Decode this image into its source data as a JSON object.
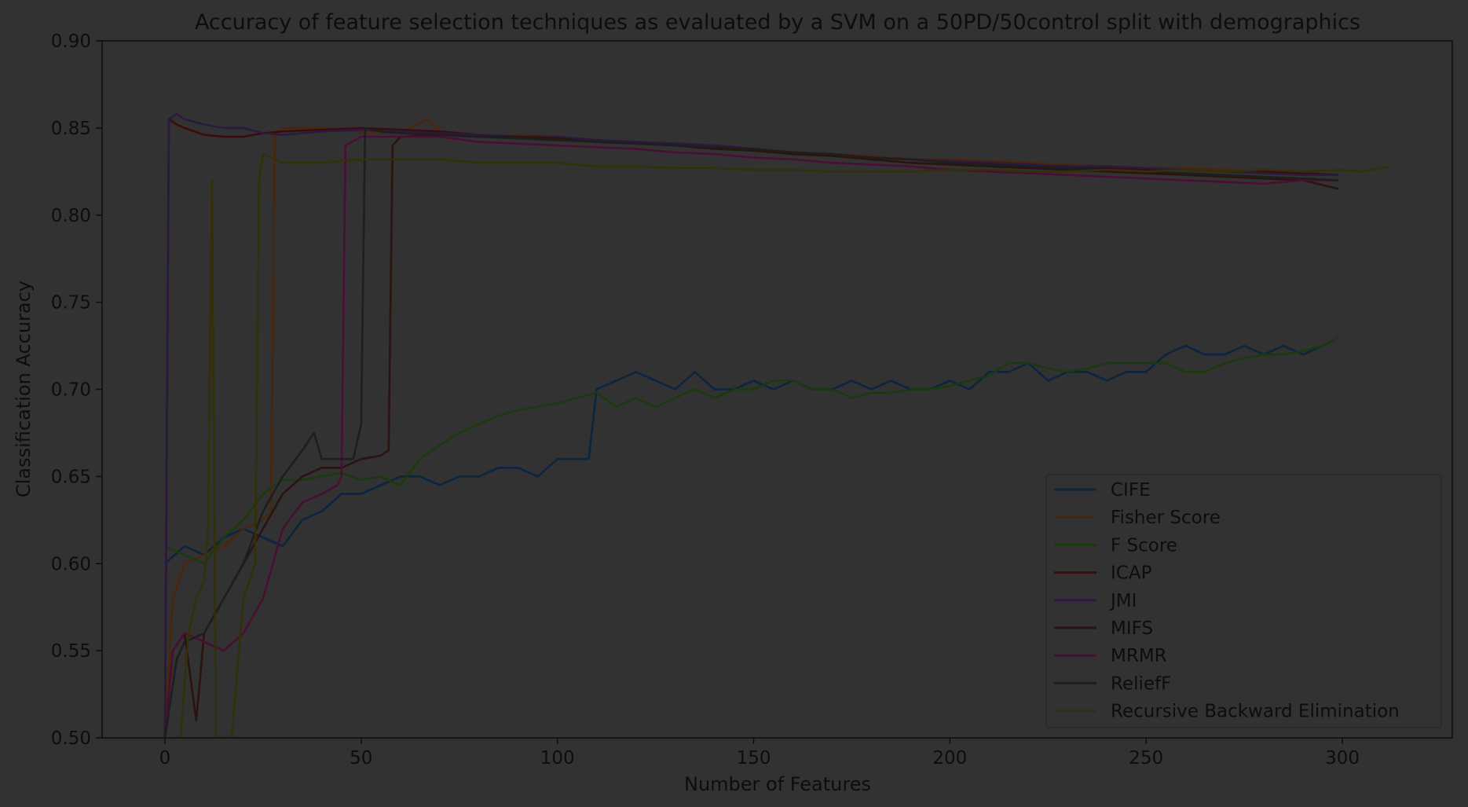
{
  "chart_data": {
    "type": "line",
    "title": "Accuracy of feature selection techniques as evaluated by a SVM on a 50PD/50control split with demographics",
    "xlabel": "Number of Features",
    "ylabel": "Classification Accuracy",
    "xlim": [
      -16,
      328
    ],
    "ylim": [
      0.5,
      0.9
    ],
    "xticks": [
      0,
      50,
      100,
      150,
      200,
      250,
      300
    ],
    "yticks": [
      0.5,
      0.55,
      0.6,
      0.65,
      0.7,
      0.75,
      0.8,
      0.85,
      0.9
    ],
    "grid": false,
    "legend_position": "lower-right",
    "series": [
      {
        "name": "CIFE",
        "color": "#0b2540",
        "x": [
          0,
          5,
          10,
          15,
          20,
          25,
          30,
          35,
          40,
          45,
          50,
          55,
          60,
          65,
          70,
          75,
          80,
          85,
          90,
          95,
          100,
          105,
          108,
          110,
          115,
          120,
          125,
          130,
          135,
          140,
          145,
          150,
          155,
          160,
          165,
          170,
          175,
          180,
          185,
          190,
          195,
          200,
          205,
          210,
          215,
          220,
          225,
          230,
          235,
          240,
          245,
          250,
          255,
          260,
          265,
          270,
          275,
          280,
          285,
          290,
          295,
          299
        ],
        "y": [
          0.6,
          0.61,
          0.605,
          0.615,
          0.62,
          0.615,
          0.61,
          0.625,
          0.63,
          0.64,
          0.64,
          0.645,
          0.65,
          0.65,
          0.645,
          0.65,
          0.65,
          0.655,
          0.655,
          0.65,
          0.66,
          0.66,
          0.66,
          0.7,
          0.705,
          0.71,
          0.705,
          0.7,
          0.71,
          0.7,
          0.7,
          0.705,
          0.7,
          0.705,
          0.7,
          0.7,
          0.705,
          0.7,
          0.705,
          0.7,
          0.7,
          0.705,
          0.7,
          0.71,
          0.71,
          0.715,
          0.705,
          0.71,
          0.71,
          0.705,
          0.71,
          0.71,
          0.72,
          0.725,
          0.72,
          0.72,
          0.725,
          0.72,
          0.725,
          0.72,
          0.725,
          0.73
        ]
      },
      {
        "name": "Fisher Score",
        "color": "#4a260c",
        "x": [
          0,
          2,
          5,
          10,
          15,
          20,
          25,
          27,
          28,
          30,
          40,
          50,
          60,
          67,
          70,
          80,
          90,
          100,
          110,
          120,
          130,
          140,
          150,
          160,
          170,
          180,
          190,
          200,
          210,
          220,
          230,
          240,
          250,
          260,
          270,
          280,
          290,
          299
        ],
        "y": [
          0.5,
          0.58,
          0.6,
          0.605,
          0.61,
          0.62,
          0.625,
          0.63,
          0.845,
          0.85,
          0.85,
          0.848,
          0.847,
          0.855,
          0.848,
          0.845,
          0.846,
          0.845,
          0.843,
          0.842,
          0.841,
          0.84,
          0.838,
          0.836,
          0.835,
          0.834,
          0.832,
          0.832,
          0.831,
          0.83,
          0.829,
          0.828,
          0.827,
          0.827,
          0.826,
          0.825,
          0.824,
          0.823
        ]
      },
      {
        "name": "F Score",
        "color": "#1a3a0e",
        "x": [
          0,
          5,
          10,
          15,
          20,
          25,
          30,
          35,
          40,
          45,
          50,
          55,
          60,
          65,
          70,
          75,
          80,
          85,
          90,
          95,
          100,
          105,
          110,
          115,
          120,
          125,
          130,
          135,
          140,
          145,
          150,
          155,
          160,
          165,
          170,
          175,
          180,
          185,
          190,
          195,
          200,
          205,
          210,
          215,
          220,
          225,
          230,
          235,
          240,
          245,
          250,
          255,
          260,
          265,
          270,
          275,
          280,
          285,
          290,
          295,
          299
        ],
        "y": [
          0.61,
          0.605,
          0.6,
          0.615,
          0.625,
          0.64,
          0.648,
          0.648,
          0.65,
          0.652,
          0.648,
          0.65,
          0.645,
          0.66,
          0.668,
          0.675,
          0.68,
          0.685,
          0.688,
          0.69,
          0.692,
          0.695,
          0.698,
          0.69,
          0.695,
          0.69,
          0.695,
          0.7,
          0.695,
          0.7,
          0.7,
          0.705,
          0.705,
          0.7,
          0.7,
          0.695,
          0.698,
          0.698,
          0.7,
          0.7,
          0.702,
          0.705,
          0.708,
          0.715,
          0.715,
          0.712,
          0.71,
          0.712,
          0.715,
          0.715,
          0.715,
          0.715,
          0.71,
          0.71,
          0.715,
          0.718,
          0.72,
          0.72,
          0.722,
          0.725,
          0.73
        ]
      },
      {
        "name": "ICAP",
        "color": "#3d0b0b",
        "x": [
          0,
          1,
          3,
          5,
          10,
          15,
          20,
          25,
          30,
          40,
          50,
          60,
          70,
          80,
          90,
          100,
          110,
          120,
          130,
          140,
          150,
          160,
          170,
          180,
          190,
          200,
          210,
          220,
          230,
          240,
          250,
          260,
          270,
          280,
          290,
          299
        ],
        "y": [
          0.5,
          0.855,
          0.852,
          0.85,
          0.846,
          0.845,
          0.845,
          0.847,
          0.848,
          0.849,
          0.85,
          0.849,
          0.848,
          0.846,
          0.845,
          0.845,
          0.843,
          0.842,
          0.841,
          0.84,
          0.838,
          0.836,
          0.835,
          0.833,
          0.832,
          0.831,
          0.83,
          0.829,
          0.828,
          0.827,
          0.826,
          0.826,
          0.825,
          0.825,
          0.824,
          0.823
        ]
      },
      {
        "name": "JMI",
        "color": "#2a1a40",
        "x": [
          0,
          1,
          3,
          5,
          10,
          15,
          20,
          25,
          30,
          40,
          50,
          60,
          70,
          80,
          90,
          100,
          110,
          120,
          130,
          140,
          150,
          160,
          170,
          180,
          190,
          200,
          210,
          220,
          230,
          240,
          250,
          260,
          270,
          280,
          290,
          299
        ],
        "y": [
          0.5,
          0.855,
          0.858,
          0.855,
          0.852,
          0.85,
          0.85,
          0.847,
          0.846,
          0.848,
          0.849,
          0.848,
          0.847,
          0.846,
          0.845,
          0.845,
          0.843,
          0.842,
          0.841,
          0.84,
          0.838,
          0.836,
          0.835,
          0.833,
          0.832,
          0.831,
          0.83,
          0.829,
          0.828,
          0.828,
          0.827,
          0.826,
          0.825,
          0.824,
          0.823,
          0.823
        ]
      },
      {
        "name": "MIFS",
        "color": "#2a1410",
        "x": [
          0,
          2,
          5,
          8,
          10,
          15,
          20,
          25,
          30,
          35,
          40,
          45,
          50,
          55,
          57,
          58,
          60,
          70,
          80,
          90,
          100,
          110,
          120,
          130,
          140,
          150,
          160,
          170,
          180,
          190,
          200,
          210,
          220,
          230,
          240,
          250,
          260,
          270,
          280,
          290,
          299
        ],
        "y": [
          0.5,
          0.55,
          0.56,
          0.51,
          0.56,
          0.58,
          0.6,
          0.62,
          0.64,
          0.65,
          0.655,
          0.655,
          0.66,
          0.662,
          0.665,
          0.84,
          0.845,
          0.846,
          0.845,
          0.845,
          0.844,
          0.842,
          0.841,
          0.84,
          0.838,
          0.837,
          0.835,
          0.834,
          0.832,
          0.83,
          0.829,
          0.828,
          0.827,
          0.826,
          0.825,
          0.824,
          0.823,
          0.822,
          0.821,
          0.82,
          0.815
        ]
      },
      {
        "name": "MRMR",
        "color": "#4a0e35",
        "x": [
          0,
          2,
          5,
          10,
          15,
          20,
          25,
          30,
          35,
          40,
          44,
          45,
          46,
          50,
          60,
          70,
          80,
          90,
          100,
          110,
          120,
          130,
          140,
          150,
          160,
          170,
          180,
          190,
          200,
          210,
          220,
          230,
          240,
          250,
          260,
          270,
          280,
          290,
          299
        ],
        "y": [
          0.5,
          0.55,
          0.56,
          0.555,
          0.55,
          0.56,
          0.58,
          0.62,
          0.635,
          0.64,
          0.645,
          0.65,
          0.84,
          0.845,
          0.845,
          0.845,
          0.842,
          0.841,
          0.84,
          0.839,
          0.838,
          0.836,
          0.835,
          0.833,
          0.832,
          0.83,
          0.829,
          0.828,
          0.826,
          0.825,
          0.824,
          0.823,
          0.822,
          0.821,
          0.82,
          0.819,
          0.818,
          0.82,
          0.82
        ]
      },
      {
        "name": "ReliefF",
        "color": "#1e1e1e",
        "x": [
          0,
          3,
          5,
          10,
          15,
          20,
          25,
          30,
          35,
          38,
          40,
          45,
          48,
          50,
          51,
          55,
          60,
          70,
          80,
          90,
          100,
          110,
          120,
          130,
          140,
          150,
          160,
          170,
          180,
          190,
          200,
          210,
          220,
          230,
          240,
          250,
          260,
          270,
          280,
          290,
          299
        ],
        "y": [
          0.5,
          0.545,
          0.555,
          0.56,
          0.58,
          0.6,
          0.63,
          0.65,
          0.665,
          0.675,
          0.66,
          0.66,
          0.66,
          0.68,
          0.85,
          0.848,
          0.847,
          0.846,
          0.845,
          0.844,
          0.843,
          0.842,
          0.841,
          0.84,
          0.839,
          0.838,
          0.836,
          0.835,
          0.833,
          0.832,
          0.83,
          0.829,
          0.828,
          0.827,
          0.826,
          0.825,
          0.824,
          0.823,
          0.822,
          0.821,
          0.82
        ]
      },
      {
        "name": "Recursive Backward Elimination",
        "color": "#333008",
        "x": [
          4,
          6,
          8,
          10,
          11,
          12,
          13,
          15,
          17,
          20,
          23,
          24,
          25,
          30,
          40,
          50,
          60,
          70,
          80,
          90,
          100,
          110,
          120,
          130,
          140,
          150,
          160,
          170,
          180,
          190,
          200,
          210,
          220,
          230,
          240,
          250,
          260,
          270,
          280,
          290,
          300,
          305,
          310,
          312
        ],
        "y": [
          0.5,
          0.56,
          0.58,
          0.59,
          0.62,
          0.82,
          0.5,
          0.5,
          0.5,
          0.58,
          0.6,
          0.82,
          0.835,
          0.83,
          0.83,
          0.832,
          0.832,
          0.832,
          0.83,
          0.83,
          0.83,
          0.828,
          0.828,
          0.827,
          0.827,
          0.826,
          0.826,
          0.825,
          0.825,
          0.825,
          0.826,
          0.826,
          0.825,
          0.825,
          0.826,
          0.825,
          0.826,
          0.825,
          0.826,
          0.825,
          0.826,
          0.825,
          0.827,
          0.828
        ]
      }
    ]
  }
}
